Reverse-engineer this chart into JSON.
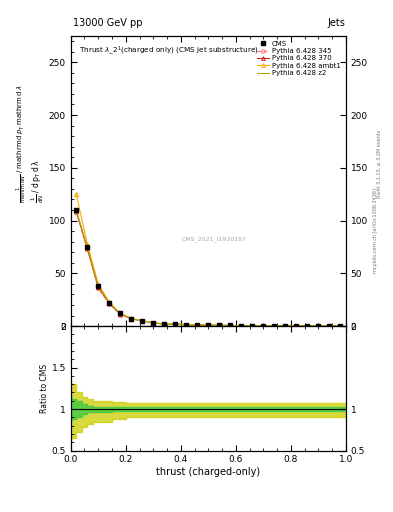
{
  "title": "13000 GeV pp",
  "right_title": "Jets",
  "inner_title": "Thrust $\\lambda\\_2^1$ (charged only) (CMS jet substructure)",
  "watermark": "CMS_2021_I1920187",
  "right_label": "mcplots.cern.ch [arXiv:1306.3436]",
  "right_label2": "Rivet 3.1.10, ≥ 3.2M events",
  "xlabel": "thrust (charged-only)",
  "ylabel_ratio": "Ratio to CMS",
  "ylim_main": [
    0,
    275
  ],
  "ylim_ratio": [
    0.5,
    2.0
  ],
  "xlim": [
    0,
    1
  ],
  "cms_color": "#000000",
  "line_colors_345": "#ff7777",
  "line_colors_370": "#cc2222",
  "line_colors_ambt1": "#ffaa00",
  "line_colors_z2": "#aaaa00",
  "band_color_green": "#44cc44",
  "band_color_yellow": "#cccc00",
  "thrust_x": [
    0.02,
    0.06,
    0.1,
    0.14,
    0.18,
    0.22,
    0.26,
    0.3,
    0.34,
    0.38,
    0.42,
    0.46,
    0.5,
    0.54,
    0.58,
    0.62,
    0.66,
    0.7,
    0.74,
    0.78,
    0.82,
    0.86,
    0.9,
    0.94,
    0.98
  ],
  "cms_y": [
    110,
    75,
    38,
    22,
    12,
    7,
    5,
    3,
    2,
    2,
    1.5,
    1,
    1,
    0.8,
    0.7,
    0.5,
    0.5,
    0.5,
    0.5,
    0.4,
    0.3,
    0.3,
    0.3,
    0.5,
    0.3
  ],
  "pythia_345_y": [
    108,
    73,
    36,
    21,
    11,
    7,
    5,
    3,
    2,
    1.8,
    1.4,
    1,
    0.9,
    0.7,
    0.6,
    0.5,
    0.4,
    0.4,
    0.4,
    0.3,
    0.3,
    0.3,
    0.3,
    0.4,
    0.3
  ],
  "pythia_370_y": [
    109,
    74,
    37,
    21.5,
    11.5,
    7,
    5,
    3,
    2,
    1.9,
    1.4,
    1,
    0.9,
    0.8,
    0.6,
    0.5,
    0.4,
    0.4,
    0.4,
    0.3,
    0.3,
    0.3,
    0.3,
    0.4,
    0.3
  ],
  "pythia_ambt1_y": [
    125,
    78,
    40,
    23,
    12,
    7.5,
    5,
    3.2,
    2.2,
    2,
    1.5,
    1.1,
    1,
    0.8,
    0.7,
    0.5,
    0.5,
    0.4,
    0.4,
    0.3,
    0.3,
    0.3,
    0.3,
    0.4,
    0.3
  ],
  "pythia_z2_y": [
    110,
    75,
    38,
    22,
    12,
    7,
    5,
    3,
    2,
    1.8,
    1.4,
    1,
    0.9,
    0.7,
    0.6,
    0.5,
    0.4,
    0.4,
    0.4,
    0.3,
    0.3,
    0.3,
    0.3,
    0.4,
    0.3
  ],
  "ratio_x": [
    0.0,
    0.02,
    0.04,
    0.06,
    0.08,
    0.1,
    0.12,
    0.15,
    0.2,
    0.3,
    0.5,
    0.75,
    1.0
  ],
  "ratio_green_upper": [
    1.15,
    1.12,
    1.1,
    1.06,
    1.04,
    1.03,
    1.03,
    1.03,
    1.02,
    1.02,
    1.02,
    1.02,
    1.02
  ],
  "ratio_green_lower": [
    0.85,
    0.88,
    0.9,
    0.94,
    0.96,
    0.97,
    0.97,
    0.97,
    0.98,
    0.98,
    0.98,
    0.98,
    0.98
  ],
  "ratio_yellow_upper": [
    1.35,
    1.3,
    1.2,
    1.15,
    1.12,
    1.1,
    1.1,
    1.1,
    1.08,
    1.07,
    1.07,
    1.07,
    1.07
  ],
  "ratio_yellow_lower": [
    0.6,
    0.65,
    0.72,
    0.78,
    0.82,
    0.85,
    0.85,
    0.85,
    0.88,
    0.9,
    0.9,
    0.9,
    0.9
  ]
}
